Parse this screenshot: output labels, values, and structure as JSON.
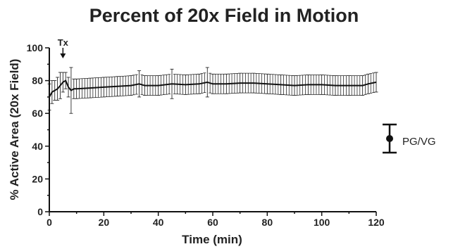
{
  "chart_data": {
    "type": "line",
    "title": "Percent of 20x Field in Motion",
    "xlabel": "Time (min)",
    "ylabel": "% Active Area (20x Field)",
    "xlim": [
      0,
      120
    ],
    "ylim": [
      0,
      100
    ],
    "xticks": [
      0,
      20,
      40,
      60,
      80,
      100,
      120
    ],
    "yticks": [
      0,
      20,
      40,
      60,
      80,
      100
    ],
    "grid": false,
    "legend_position": "right",
    "annotation": {
      "label": "Tx",
      "x": 5
    },
    "series": [
      {
        "name": "PG/VG",
        "error_bars": "mean ± error",
        "points": [
          {
            "x": 0,
            "y": 70,
            "err": 8
          },
          {
            "x": 1,
            "y": 73,
            "err": 7
          },
          {
            "x": 2,
            "y": 74,
            "err": 6
          },
          {
            "x": 3,
            "y": 75,
            "err": 7
          },
          {
            "x": 4,
            "y": 77,
            "err": 8
          },
          {
            "x": 5,
            "y": 79,
            "err": 6
          },
          {
            "x": 6,
            "y": 80,
            "err": 5
          },
          {
            "x": 7,
            "y": 76,
            "err": 6
          },
          {
            "x": 8,
            "y": 74,
            "err": 14
          },
          {
            "x": 9,
            "y": 75,
            "err": 6
          },
          {
            "x": 10,
            "y": 75,
            "err": 6
          },
          {
            "x": 15,
            "y": 75.5,
            "err": 6
          },
          {
            "x": 20,
            "y": 76,
            "err": 6
          },
          {
            "x": 25,
            "y": 76.5,
            "err": 6
          },
          {
            "x": 30,
            "y": 77,
            "err": 6
          },
          {
            "x": 33,
            "y": 78,
            "err": 8
          },
          {
            "x": 35,
            "y": 77,
            "err": 6
          },
          {
            "x": 40,
            "y": 77,
            "err": 6
          },
          {
            "x": 45,
            "y": 78,
            "err": 9
          },
          {
            "x": 50,
            "y": 77.5,
            "err": 6
          },
          {
            "x": 55,
            "y": 78,
            "err": 6
          },
          {
            "x": 58,
            "y": 79,
            "err": 9
          },
          {
            "x": 60,
            "y": 78,
            "err": 6
          },
          {
            "x": 65,
            "y": 78,
            "err": 6
          },
          {
            "x": 70,
            "y": 78.5,
            "err": 6
          },
          {
            "x": 75,
            "y": 78.5,
            "err": 6
          },
          {
            "x": 80,
            "y": 78,
            "err": 6
          },
          {
            "x": 85,
            "y": 77.5,
            "err": 6
          },
          {
            "x": 90,
            "y": 77,
            "err": 6
          },
          {
            "x": 95,
            "y": 77.5,
            "err": 6
          },
          {
            "x": 100,
            "y": 77.5,
            "err": 6
          },
          {
            "x": 105,
            "y": 77,
            "err": 6
          },
          {
            "x": 110,
            "y": 77,
            "err": 6
          },
          {
            "x": 115,
            "y": 77,
            "err": 6
          },
          {
            "x": 117,
            "y": 78,
            "err": 6
          },
          {
            "x": 120,
            "y": 79,
            "err": 6
          }
        ]
      }
    ]
  },
  "colors": {
    "line": "#111111",
    "text": "#222222"
  }
}
